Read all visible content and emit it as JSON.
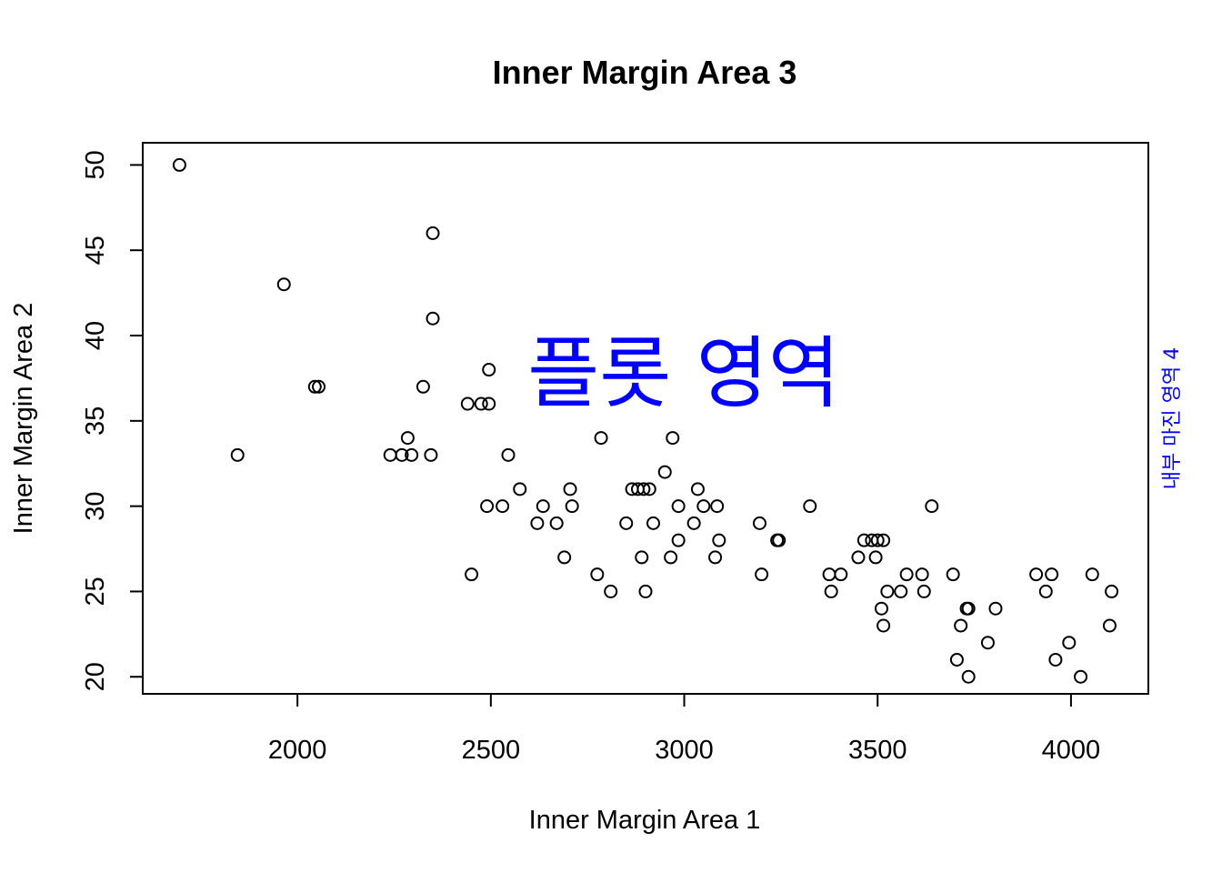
{
  "chart_data": {
    "type": "scatter",
    "title": "Inner Margin Area 3",
    "xlabel": "Inner Margin Area 1",
    "ylabel": "Inner Margin Area 2",
    "right_label": "내부 마진 영역 4",
    "plot_text": "플롯 영역",
    "text_color": "#0000ff",
    "point_color": "#000000",
    "xlim": [
      1600,
      4200
    ],
    "ylim": [
      19,
      51.3
    ],
    "xticks": [
      2000,
      2500,
      3000,
      3500,
      4000
    ],
    "yticks": [
      20,
      25,
      30,
      35,
      40,
      45,
      50
    ],
    "grid": false,
    "marker": "open-circle",
    "points": [
      [
        1695,
        50
      ],
      [
        1845,
        33
      ],
      [
        1965,
        43
      ],
      [
        2045,
        37
      ],
      [
        2055,
        37
      ],
      [
        2240,
        33
      ],
      [
        2270,
        33
      ],
      [
        2285,
        34
      ],
      [
        2295,
        33
      ],
      [
        2325,
        37
      ],
      [
        2345,
        33
      ],
      [
        2350,
        41
      ],
      [
        2350,
        46
      ],
      [
        2440,
        36
      ],
      [
        2450,
        26
      ],
      [
        2475,
        36
      ],
      [
        2490,
        30
      ],
      [
        2495,
        36
      ],
      [
        2495,
        38
      ],
      [
        2530,
        30
      ],
      [
        2545,
        33
      ],
      [
        2575,
        31
      ],
      [
        2620,
        29
      ],
      [
        2635,
        30
      ],
      [
        2670,
        29
      ],
      [
        2690,
        27
      ],
      [
        2705,
        31
      ],
      [
        2710,
        30
      ],
      [
        2775,
        26
      ],
      [
        2785,
        34
      ],
      [
        2810,
        25
      ],
      [
        2850,
        29
      ],
      [
        2865,
        31
      ],
      [
        2880,
        31
      ],
      [
        2890,
        27
      ],
      [
        2895,
        31
      ],
      [
        2900,
        25
      ],
      [
        2910,
        31
      ],
      [
        2920,
        29
      ],
      [
        2950,
        32
      ],
      [
        2965,
        27
      ],
      [
        2970,
        34
      ],
      [
        2985,
        30
      ],
      [
        2985,
        28
      ],
      [
        3025,
        29
      ],
      [
        3035,
        31
      ],
      [
        3050,
        30
      ],
      [
        3080,
        27
      ],
      [
        3085,
        30
      ],
      [
        3090,
        28
      ],
      [
        3195,
        29
      ],
      [
        3200,
        26
      ],
      [
        3240,
        28
      ],
      [
        3245,
        28
      ],
      [
        3325,
        30
      ],
      [
        3375,
        26
      ],
      [
        3380,
        25
      ],
      [
        3405,
        26
      ],
      [
        3450,
        27
      ],
      [
        3465,
        28
      ],
      [
        3485,
        28
      ],
      [
        3495,
        27
      ],
      [
        3500,
        28
      ],
      [
        3510,
        24
      ],
      [
        3515,
        23
      ],
      [
        3515,
        28
      ],
      [
        3525,
        25
      ],
      [
        3560,
        25
      ],
      [
        3575,
        26
      ],
      [
        3615,
        26
      ],
      [
        3620,
        25
      ],
      [
        3640,
        30
      ],
      [
        3695,
        26
      ],
      [
        3705,
        21
      ],
      [
        3715,
        23
      ],
      [
        3730,
        24
      ],
      [
        3735,
        20
      ],
      [
        3735,
        24
      ],
      [
        3785,
        22
      ],
      [
        3805,
        24
      ],
      [
        3910,
        26
      ],
      [
        3935,
        25
      ],
      [
        3950,
        26
      ],
      [
        3960,
        21
      ],
      [
        3995,
        22
      ],
      [
        4025,
        20
      ],
      [
        4055,
        26
      ],
      [
        4100,
        23
      ],
      [
        4105,
        25
      ]
    ]
  }
}
